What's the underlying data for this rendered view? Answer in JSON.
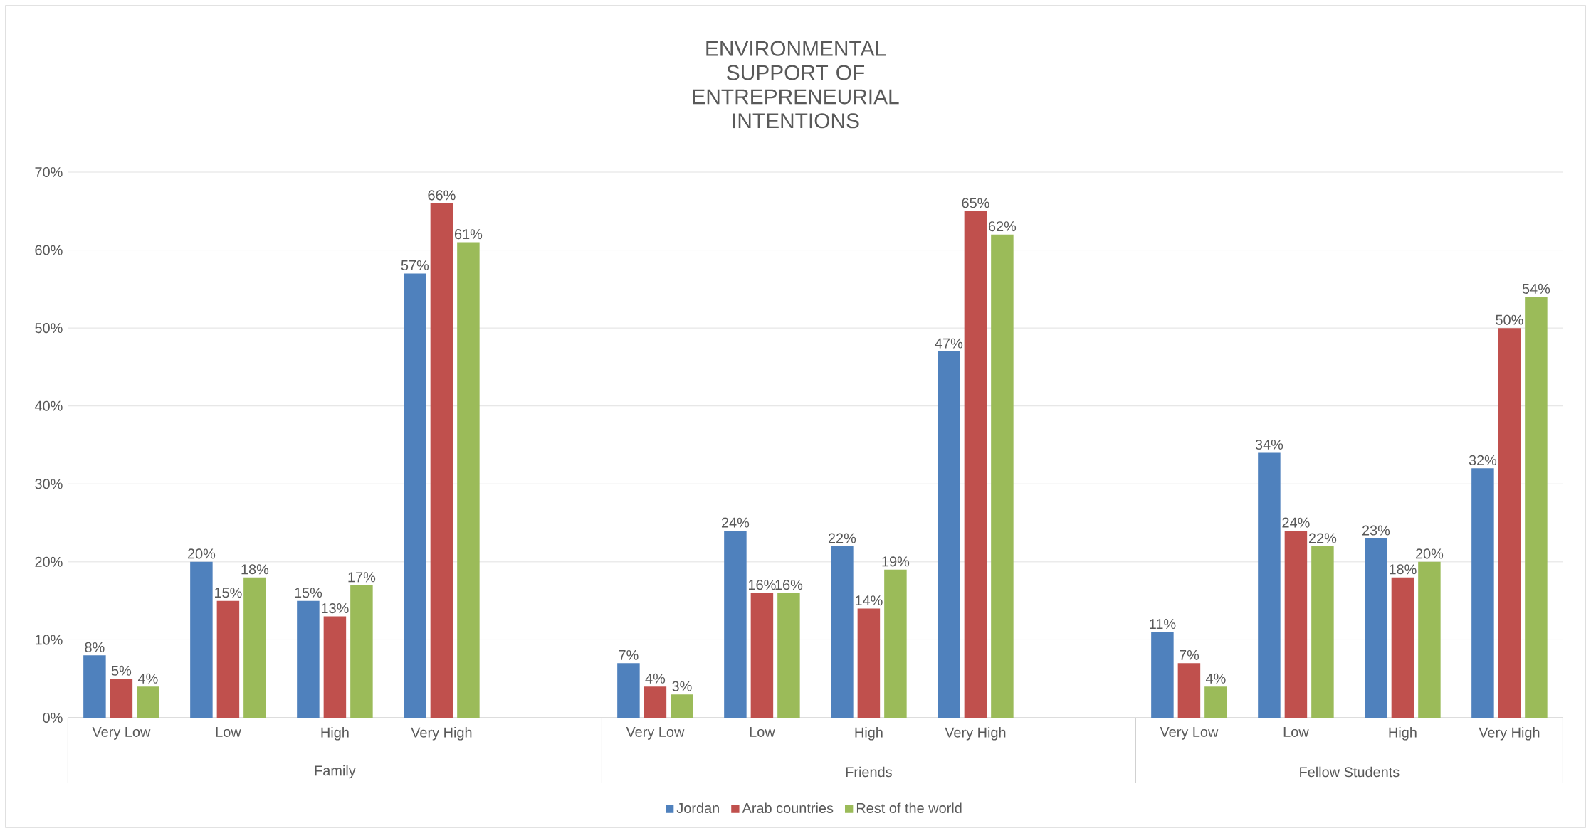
{
  "chart_data": {
    "type": "bar",
    "title": "ENVIRONMENTAL SUPPORT OF ENTREPRENEURIAL INTENTIONS",
    "categories": [
      "Very Low",
      "Low",
      "High",
      "Very High",
      null,
      "Very Low",
      "Low",
      "High",
      "Very High",
      null,
      "Very Low",
      "Low",
      "High",
      "Very High"
    ],
    "annotations": [
      "Family",
      "Friends",
      "Fellow Students"
    ],
    "series": [
      {
        "name": "Jordan",
        "color": "#4f81bd",
        "values": [
          8,
          20,
          15,
          57,
          null,
          7,
          24,
          22,
          47,
          null,
          11,
          34,
          23,
          32
        ],
        "value_labels": [
          "8%",
          "20%",
          "15%",
          "57%",
          null,
          "7%",
          "24%",
          "22%",
          "47%",
          null,
          "11%",
          "34%",
          "23%",
          "32%"
        ]
      },
      {
        "name": "Arab countries",
        "color": "#c0504d",
        "values": [
          5,
          15,
          13,
          66,
          null,
          4,
          16,
          14,
          65,
          null,
          7,
          24,
          18,
          50
        ],
        "value_labels": [
          "5%",
          "15%",
          "13%",
          "66%",
          null,
          "4%",
          "16%",
          "14%",
          "65%",
          null,
          "7%",
          "24%",
          "18%",
          "50%"
        ]
      },
      {
        "name": "Rest of the world",
        "color": "#9bbb59",
        "values": [
          4,
          18,
          17,
          61,
          null,
          3,
          16,
          19,
          62,
          null,
          4,
          22,
          20,
          54
        ],
        "value_labels": [
          "4%",
          "18%",
          "17%",
          "61%",
          null,
          "3%",
          "16%",
          "19%",
          "62%",
          null,
          "4%",
          "22%",
          "20%",
          "54%"
        ]
      }
    ],
    "ylim": [
      0,
      70
    ],
    "yticks": [
      {
        "value": 0,
        "label": "0%"
      },
      {
        "value": 10,
        "label": "10%"
      },
      {
        "value": 20,
        "label": "20%"
      },
      {
        "value": 30,
        "label": "30%"
      },
      {
        "value": 40,
        "label": "40%"
      },
      {
        "value": 50,
        "label": "50%"
      },
      {
        "value": 60,
        "label": "60%"
      },
      {
        "value": 70,
        "label": "70%"
      }
    ],
    "grid": "y",
    "legend": "bottom"
  }
}
